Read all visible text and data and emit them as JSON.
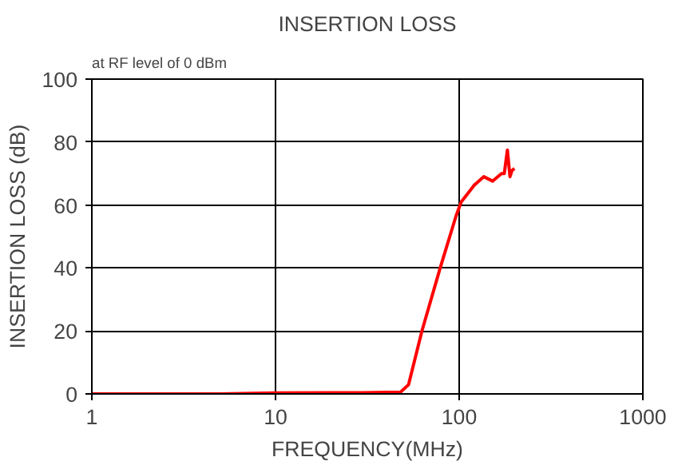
{
  "chart_data": {
    "type": "line",
    "title": "INSERTION LOSS",
    "xlabel": "FREQUENCY(MHz)",
    "ylabel": "INSERTION LOSS (dB)",
    "annotations": [
      "at RF level of 0 dBm"
    ],
    "log": "x",
    "grid": true,
    "marker": "none",
    "line_style": "solid",
    "xlim": [
      1,
      1000
    ],
    "xticks": [
      1,
      10,
      100,
      1000
    ],
    "ylim": [
      0,
      100
    ],
    "yticks": [
      0,
      20,
      40,
      60,
      80,
      100
    ],
    "series": [
      {
        "color": "#ff0000",
        "x": [
          1,
          5,
          10,
          20,
          30,
          40,
          48,
          53,
          62.7,
          78.8,
          96,
          102.6,
          120.8,
          136,
          152,
          170,
          176,
          183,
          189,
          194,
          200
        ],
        "values": [
          0,
          0,
          0.3,
          0.4,
          0.4,
          0.5,
          0.6,
          2.9,
          20,
          40,
          56.4,
          61,
          66.3,
          69,
          67.6,
          70,
          70,
          77.5,
          69,
          71,
          71.6
        ]
      }
    ]
  }
}
